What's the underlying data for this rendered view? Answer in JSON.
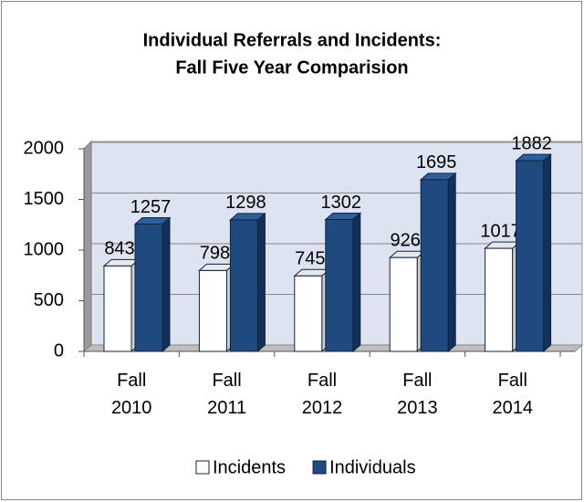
{
  "chart_data": {
    "type": "bar",
    "title": [
      "Individual Referrals and Incidents:",
      "Fall Five Year Comparision"
    ],
    "categories": [
      "Fall 2010",
      "Fall 2011",
      "Fall 2012",
      "Fall 2013",
      "Fall 2014"
    ],
    "series": [
      {
        "name": "Incidents",
        "color": "#ffffff",
        "values": [
          843,
          798,
          745,
          926,
          1017
        ]
      },
      {
        "name": "Individuals",
        "color": "#1f4a80",
        "values": [
          1257,
          1298,
          1302,
          1695,
          1882
        ]
      }
    ],
    "ylim": [
      0,
      2000
    ],
    "yticks": [
      0,
      500,
      1000,
      1500,
      2000
    ],
    "grid": true,
    "legend": "bottom"
  }
}
